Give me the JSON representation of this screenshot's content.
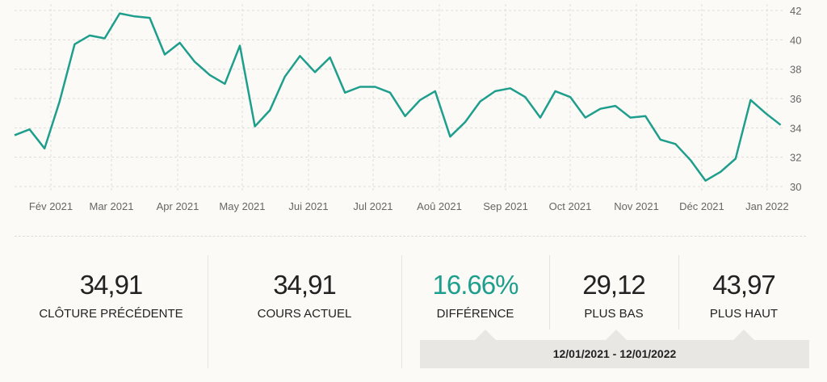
{
  "chart_data": {
    "type": "line",
    "title": "",
    "xlabel": "",
    "ylabel": "",
    "ylim": [
      30,
      42
    ],
    "yticks": [
      30,
      32,
      34,
      36,
      38,
      40,
      42
    ],
    "y_axis_position": "right",
    "grid": true,
    "x_unit": "week index",
    "xticks": [
      {
        "label": "Fév 2021",
        "pos": 2.42
      },
      {
        "label": "Mar 2021",
        "pos": 6.45
      },
      {
        "label": "Apr 2021",
        "pos": 10.86
      },
      {
        "label": "May 2021",
        "pos": 15.16
      },
      {
        "label": "Jui 2021",
        "pos": 19.57
      },
      {
        "label": "Jul 2021",
        "pos": 23.87
      },
      {
        "label": "Aoû 2021",
        "pos": 28.28
      },
      {
        "label": "Sep 2021",
        "pos": 32.69
      },
      {
        "label": "Oct 2021",
        "pos": 36.99
      },
      {
        "label": "Nov 2021",
        "pos": 41.4
      },
      {
        "label": "Déc 2021",
        "pos": 45.75
      },
      {
        "label": "Jan 2022",
        "pos": 50.1
      }
    ],
    "series": [
      {
        "name": "Cours",
        "color": "#1e9e8c",
        "values": [
          33.5,
          33.9,
          32.6,
          35.8,
          39.7,
          40.3,
          40.1,
          41.8,
          41.6,
          41.5,
          39.0,
          39.8,
          38.5,
          37.6,
          37.0,
          39.6,
          34.1,
          35.2,
          37.5,
          38.9,
          37.8,
          38.8,
          36.4,
          36.8,
          36.8,
          36.4,
          34.8,
          35.9,
          36.5,
          33.4,
          34.4,
          35.8,
          36.5,
          36.7,
          36.1,
          34.7,
          36.5,
          36.1,
          34.7,
          35.3,
          35.5,
          34.7,
          34.8,
          33.2,
          32.9,
          31.8,
          30.4,
          31.0,
          31.9,
          35.9,
          35.0,
          34.2
        ]
      }
    ]
  },
  "stats": [
    {
      "value": "34,91",
      "label": "Clôture précédente"
    },
    {
      "value": "34,91",
      "label": "Cours actuel"
    },
    {
      "value": "16.66%",
      "label": "Différence",
      "color": "#1e9e8c"
    },
    {
      "value": "29,12",
      "label": "Plus bas"
    },
    {
      "value": "43,97",
      "label": "Plus haut"
    }
  ],
  "date_range": "12/01/2021 - 12/01/2022"
}
